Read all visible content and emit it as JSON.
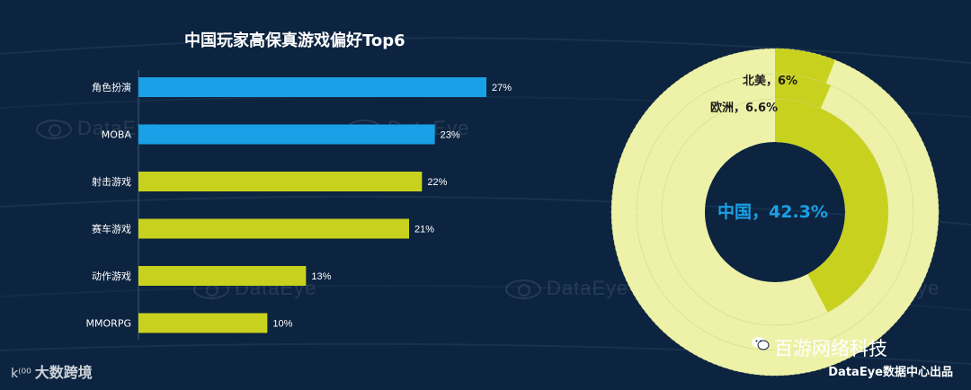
{
  "bar_title": "中国玩家高保真游戏偏好Top6",
  "ring_center_label": "中国，42.3%",
  "ring_label_na": "北美，6%",
  "ring_label_eu": "欧洲，6.6%",
  "company_name": "百游网络科技",
  "credit": "DataEye数据中心出品",
  "left_logo": "大数跨境",
  "watermark_text": "DataEye",
  "colors": {
    "background": "#0d2440",
    "bar_blue": "#1aa0e6",
    "bar_yellow": "#c8d21e",
    "ring_base": "#eef2a8",
    "ring_fill": "#c8d21e",
    "center_text": "#1aa0e6"
  },
  "chart_data": [
    {
      "type": "bar",
      "orientation": "horizontal",
      "title": "中国玩家高保真游戏偏好Top6",
      "categories": [
        "角色扮演",
        "MOBA",
        "射击游戏",
        "赛车游戏",
        "动作游戏",
        "MMORPG"
      ],
      "values": [
        27,
        23,
        22,
        21,
        13,
        10
      ],
      "value_labels": [
        "27%",
        "23%",
        "22%",
        "21%",
        "13%",
        "10%"
      ],
      "bar_colors": [
        "#1aa0e6",
        "#1aa0e6",
        "#c8d21e",
        "#c8d21e",
        "#c8d21e",
        "#c8d21e"
      ],
      "xlim": [
        0,
        27
      ],
      "unit": "%"
    },
    {
      "type": "pie",
      "variant": "concentric-rings",
      "series": [
        {
          "name": "北美",
          "value": 6,
          "label": "北美，6%"
        },
        {
          "name": "欧洲",
          "value": 6.6,
          "label": "欧洲，6.6%"
        },
        {
          "name": "中国",
          "value": 42.3,
          "label": "中国，42.3%"
        }
      ],
      "unit": "%"
    }
  ]
}
